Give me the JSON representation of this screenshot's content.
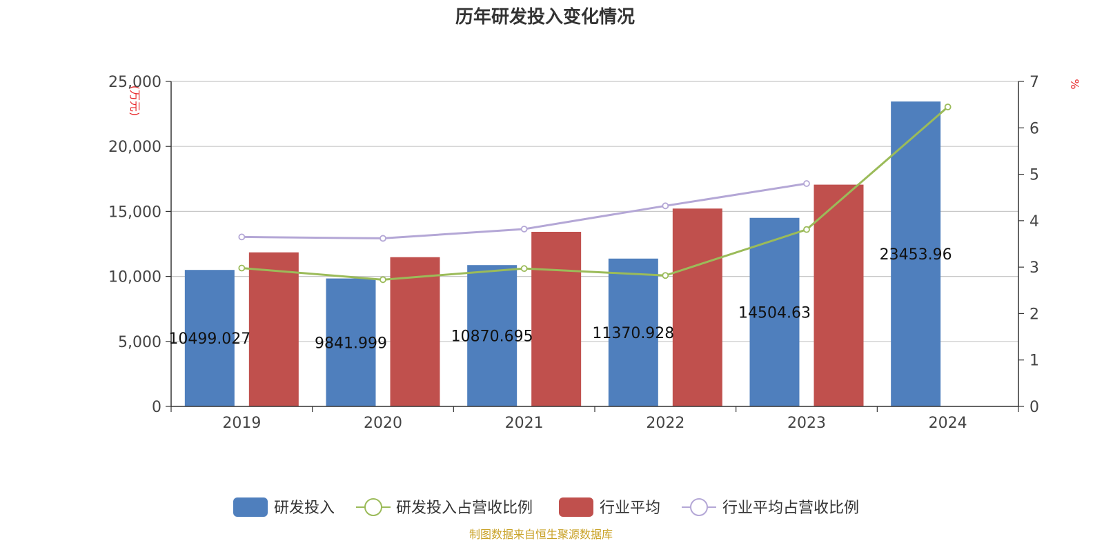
{
  "chart_data": {
    "type": "bar",
    "title": "历年研发投入变化情况",
    "categories": [
      "2019",
      "2020",
      "2021",
      "2022",
      "2023",
      "2024"
    ],
    "left_axis": {
      "unit_label": "(万元)",
      "ylim": [
        0,
        25000
      ],
      "ticks": [
        0,
        5000,
        10000,
        15000,
        20000,
        25000
      ],
      "tick_labels": [
        "0",
        "5,000",
        "10,000",
        "15,000",
        "20,000",
        "25,000"
      ]
    },
    "right_axis": {
      "unit_label": "%",
      "ylim": [
        0,
        7
      ],
      "ticks": [
        0,
        1,
        2,
        3,
        4,
        5,
        6,
        7
      ],
      "tick_labels": [
        "0",
        "1",
        "2",
        "3",
        "4",
        "5",
        "6",
        "7"
      ]
    },
    "series": [
      {
        "name": "研发投入",
        "kind": "bar",
        "axis": "left",
        "color": "#4f7fbd",
        "values": [
          10499.027,
          9841.999,
          10870.695,
          11370.928,
          14504.63,
          23453.96
        ],
        "labels": [
          "10499.027",
          "9841.999",
          "10870.695",
          "11370.928",
          "14504.63",
          "23453.96"
        ]
      },
      {
        "name": "研发投入占营收比例",
        "kind": "line",
        "axis": "right",
        "color": "#9bbb59",
        "values": [
          2.98,
          2.73,
          2.97,
          2.82,
          3.81,
          6.45
        ]
      },
      {
        "name": "行业平均",
        "kind": "bar",
        "axis": "left",
        "color": "#c0504d",
        "values": [
          11850,
          11480,
          13430,
          15220,
          17060,
          null
        ]
      },
      {
        "name": "行业平均占营收比例",
        "kind": "line",
        "axis": "right",
        "color": "#b4a7d6",
        "values": [
          3.65,
          3.62,
          3.82,
          4.32,
          4.8,
          null
        ]
      }
    ],
    "legend_position": "bottom",
    "grid": true
  },
  "footer": {
    "source": "制图数据来自恒生聚源数据库"
  }
}
